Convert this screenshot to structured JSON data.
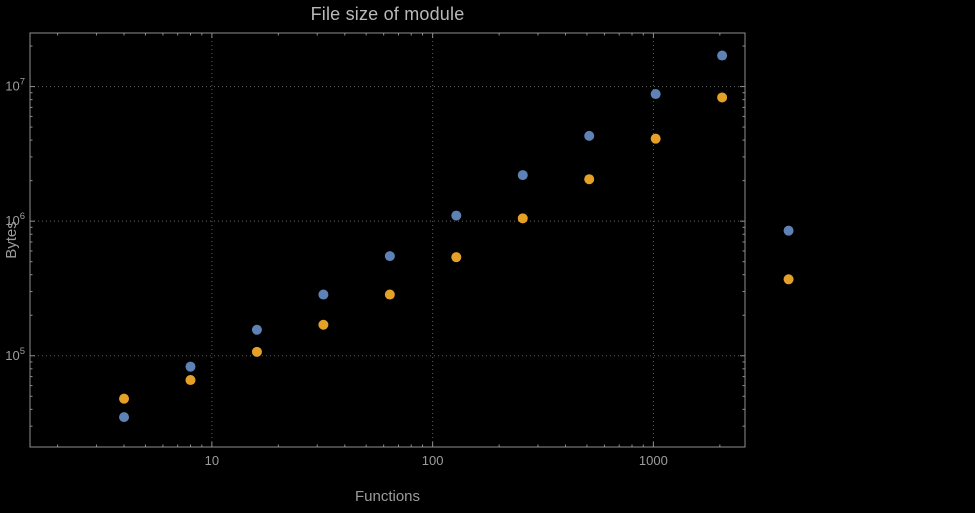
{
  "title": "File size of module",
  "axes": {
    "x_label": "Functions",
    "y_label": "Bytes"
  },
  "colors": {
    "background": "#000000",
    "frame": "#8f8f8f",
    "grid": "#5f5f5f",
    "tick_text": "#9c9c9c",
    "title_text": "#b9b9b9",
    "series_blue": "#5e82b5",
    "series_orange": "#e5a028"
  },
  "chart_data": {
    "type": "scatter",
    "title": "File size of module",
    "xlabel": "Functions",
    "ylabel": "Bytes",
    "xscale": "log",
    "yscale": "log",
    "grid": true,
    "legend": "none",
    "x": [
      4,
      8,
      16,
      32,
      64,
      128,
      256,
      512,
      1024,
      2048,
      4096
    ],
    "series": [
      {
        "name": "series-blue",
        "color": "#5e82b5",
        "values": [
          35000,
          83000,
          156000,
          285000,
          550000,
          1100000,
          2200000,
          4300000,
          8800000,
          17000000,
          850000
        ]
      },
      {
        "name": "series-orange",
        "color": "#e5a028",
        "values": [
          48000,
          66000,
          107000,
          170000,
          285000,
          540000,
          1050000,
          2050000,
          4100000,
          8300000,
          370000
        ]
      }
    ],
    "xticks": {
      "values": [
        10,
        100,
        1000
      ],
      "labels": [
        "10",
        "100",
        "1000"
      ]
    },
    "yticks": {
      "values": [
        100000,
        1000000,
        10000000
      ],
      "labels": [
        [
          "10",
          "5"
        ],
        [
          "10",
          "6"
        ],
        [
          "10",
          "7"
        ]
      ]
    },
    "xlim": [
      1.5,
      2600
    ],
    "ylim": [
      21000,
      25000000
    ]
  }
}
